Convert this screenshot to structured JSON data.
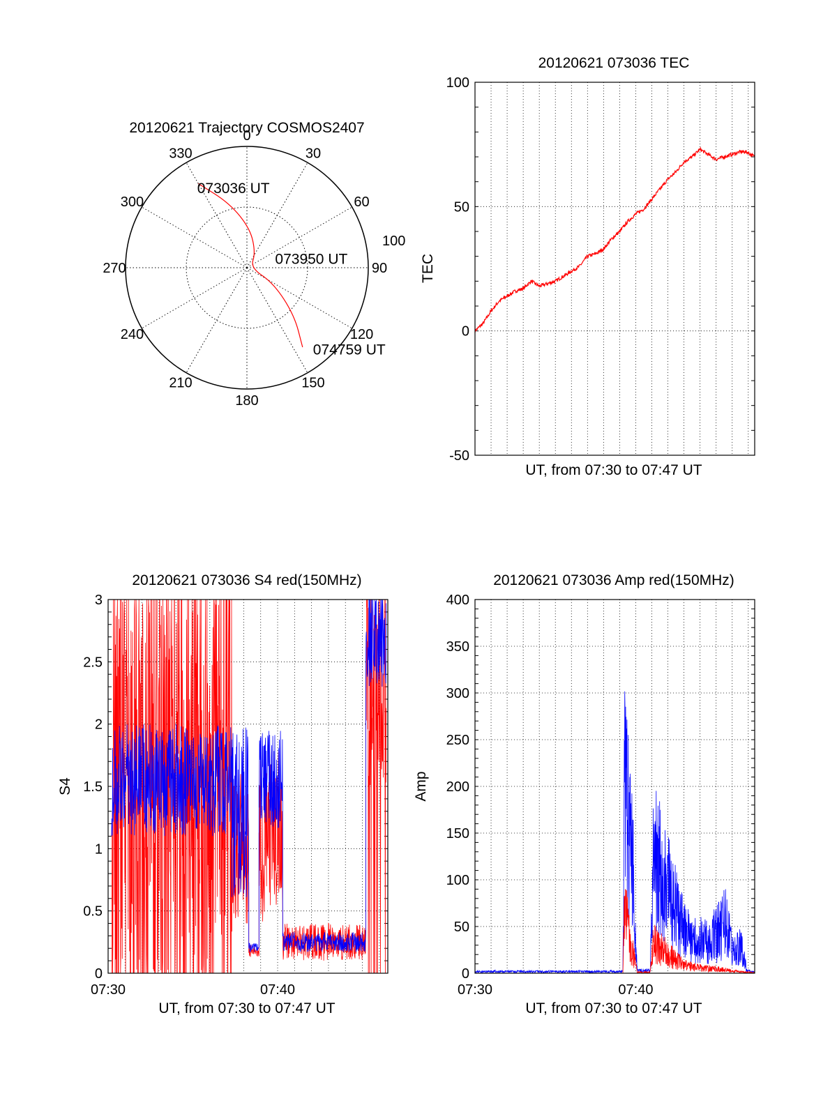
{
  "chart_data": [
    {
      "type": "polar",
      "title": "20120621 Trajectory COSMOS2407",
      "angle_labels": [
        "0",
        "30",
        "60",
        "90",
        "120",
        "150",
        "180",
        "210",
        "240",
        "270",
        "300",
        "330"
      ],
      "angle_values": [
        0,
        30,
        60,
        90,
        120,
        150,
        180,
        210,
        240,
        270,
        300,
        330
      ],
      "radial_label": "100",
      "trajectory": {
        "color": "#ff0000",
        "points": [
          [
            330,
            80
          ],
          [
            345,
            55
          ],
          [
            5,
            32
          ],
          [
            30,
            14
          ],
          [
            90,
            3
          ],
          [
            120,
            25
          ],
          [
            135,
            55
          ],
          [
            145,
            80
          ]
        ]
      },
      "annotations": [
        {
          "text": "073036 UT",
          "az": 332,
          "r": 75
        },
        {
          "text": "073950 UT",
          "az": 75,
          "r": 30
        },
        {
          "text": "074759 UT",
          "az": 138,
          "r": 90
        }
      ]
    },
    {
      "type": "line",
      "title": "20120621 073036 TEC",
      "ylabel": "TEC",
      "xlabel": "UT, from 07:30 to 07:47 UT",
      "xlim": [
        0,
        17.4
      ],
      "ylim": [
        -50,
        100
      ],
      "yticks": [
        -50,
        0,
        50,
        100
      ],
      "xticks": [],
      "xtick_labels": [],
      "grid": true,
      "series": [
        {
          "color": "#ff0000",
          "x": [
            0,
            0.5,
            1.0,
            1.5,
            2.0,
            2.5,
            3.0,
            3.5,
            4.0,
            4.5,
            5.0,
            5.5,
            6.0,
            6.5,
            7.0,
            7.5,
            8.0,
            8.5,
            9.0,
            9.5,
            10.0,
            10.5,
            11.0,
            11.5,
            12.0,
            12.5,
            13.0,
            13.5,
            14.0,
            14.5,
            15.0,
            15.5,
            16.0,
            16.5,
            16.9,
            17.4
          ],
          "y": [
            0,
            3,
            8,
            12,
            14,
            16,
            17,
            20,
            18,
            19,
            20,
            22,
            24,
            26,
            30,
            31,
            33,
            37,
            40,
            44,
            47,
            49,
            53,
            57,
            61,
            64,
            68,
            70,
            73,
            71,
            69,
            70,
            71,
            72,
            72,
            70
          ]
        }
      ]
    },
    {
      "type": "line",
      "title": "20120621 073036 S4 red(150MHz)",
      "ylabel": "S4",
      "xlabel": "UT, from 07:30 to 07:47 UT",
      "xlim": [
        0,
        16.5
      ],
      "ylim": [
        0,
        3
      ],
      "yticks": [
        0,
        0.5,
        1,
        1.5,
        2,
        2.5,
        3
      ],
      "ytick_labels": [
        "0",
        "0.5",
        "1",
        "1.5",
        "2",
        "2.5",
        "3"
      ],
      "xticks": [
        0,
        10
      ],
      "xtick_labels": [
        "07:30",
        "07:40"
      ],
      "grid": true,
      "series": [
        {
          "color": "#ff0000",
          "segments": [
            {
              "x0": 0.2,
              "x1": 7.3,
              "base": 1.4,
              "noise": 1.6,
              "spikes": true
            },
            {
              "x0": 7.3,
              "x1": 8.3,
              "base": 1.0,
              "noise": 0.6,
              "spikes": false
            },
            {
              "x0": 8.3,
              "x1": 8.9,
              "base": 0.18,
              "noise": 0.05,
              "spikes": false
            },
            {
              "x0": 8.9,
              "x1": 10.3,
              "base": 1.1,
              "noise": 0.7,
              "spikes": false
            },
            {
              "x0": 10.3,
              "x1": 15.2,
              "base": 0.25,
              "noise": 0.15,
              "spikes": false
            },
            {
              "x0": 15.2,
              "x1": 16.4,
              "base": 2.3,
              "noise": 0.8,
              "spikes": true
            }
          ]
        },
        {
          "color": "#0000ff",
          "segments": [
            {
              "x0": 0.2,
              "x1": 7.3,
              "base": 1.55,
              "noise": 0.45,
              "spikes": false
            },
            {
              "x0": 7.3,
              "x1": 8.3,
              "base": 1.3,
              "noise": 0.7,
              "spikes": false
            },
            {
              "x0": 8.3,
              "x1": 8.9,
              "base": 0.2,
              "noise": 0.04,
              "spikes": false
            },
            {
              "x0": 8.9,
              "x1": 10.3,
              "base": 1.55,
              "noise": 0.4,
              "spikes": false
            },
            {
              "x0": 10.3,
              "x1": 15.2,
              "base": 0.25,
              "noise": 0.08,
              "spikes": false
            },
            {
              "x0": 15.2,
              "x1": 16.4,
              "base": 2.7,
              "noise": 0.4,
              "spikes": false
            }
          ]
        }
      ]
    },
    {
      "type": "line",
      "title": "20120621 073036 Amp red(150MHz)",
      "ylabel": "Amp",
      "xlabel": "UT, from 07:30 to 07:47 UT",
      "xlim": [
        0,
        17.4
      ],
      "ylim": [
        0,
        400
      ],
      "yticks": [
        0,
        50,
        100,
        150,
        200,
        250,
        300,
        350,
        400
      ],
      "ytick_labels": [
        "0",
        "50",
        "100",
        "150",
        "200",
        "250",
        "300",
        "350",
        "400"
      ],
      "xticks": [
        0,
        10
      ],
      "xtick_labels": [
        "07:30",
        "07:40"
      ],
      "grid": true,
      "series": [
        {
          "color": "#0000ff",
          "envelope": [
            [
              0,
              3
            ],
            [
              9.2,
              3
            ],
            [
              9.3,
              320
            ],
            [
              9.8,
              200
            ],
            [
              10.1,
              5
            ],
            [
              10.9,
              5
            ],
            [
              11.1,
              210
            ],
            [
              12.0,
              150
            ],
            [
              13.0,
              80
            ],
            [
              14.0,
              60
            ],
            [
              15.0,
              70
            ],
            [
              15.6,
              100
            ],
            [
              16.0,
              40
            ],
            [
              16.6,
              50
            ],
            [
              16.9,
              5
            ],
            [
              17.4,
              2
            ]
          ]
        },
        {
          "color": "#ff0000",
          "envelope": [
            [
              0,
              0
            ],
            [
              9.2,
              0
            ],
            [
              9.3,
              110
            ],
            [
              9.8,
              40
            ],
            [
              10.1,
              2
            ],
            [
              10.9,
              2
            ],
            [
              11.1,
              55
            ],
            [
              12.0,
              35
            ],
            [
              13.0,
              15
            ],
            [
              14.0,
              10
            ],
            [
              15.0,
              8
            ],
            [
              16.0,
              4
            ],
            [
              17.4,
              1
            ]
          ]
        }
      ]
    }
  ]
}
